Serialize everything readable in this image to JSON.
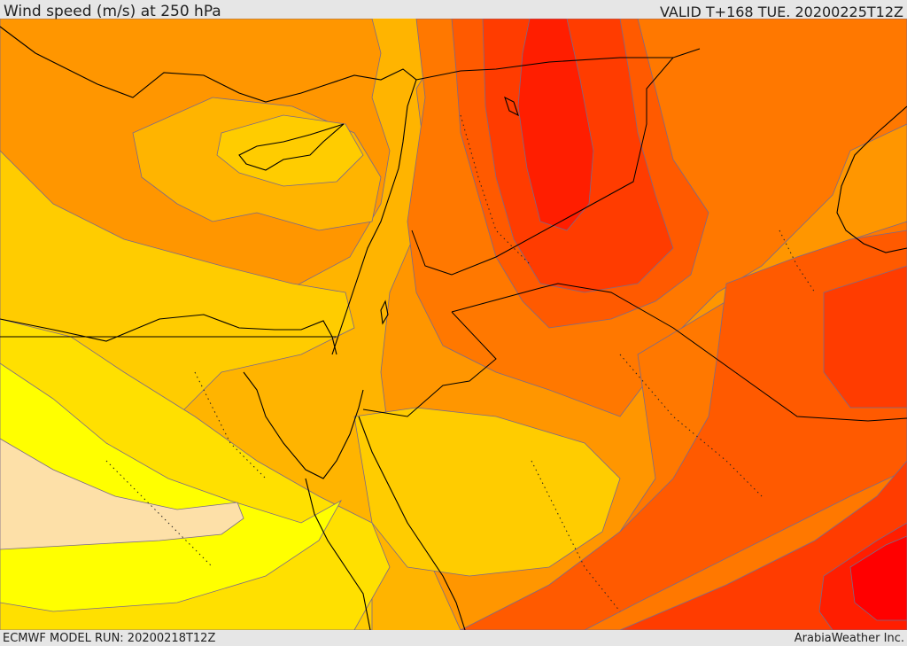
{
  "header": {
    "title": "Wind speed (m/s) at 250 hPa",
    "valid": "VALID T+168 TUE. 20200225T12Z"
  },
  "footer": {
    "model_run": "ECMWF MODEL RUN: 20200218T12Z",
    "credit": "ArabiaWeather Inc."
  },
  "palette": {
    "lightest": "#fde0a8",
    "yellow": "#ffff00",
    "gold": "#ffe000",
    "amber": "#ffcc00",
    "light_orange": "#ffb400",
    "orange": "#ff9600",
    "deep_orange": "#ff7800",
    "red_orange": "#ff5a00",
    "orange_red": "#ff3c00",
    "red": "#ff1e00",
    "deep_red": "#ff0000"
  }
}
